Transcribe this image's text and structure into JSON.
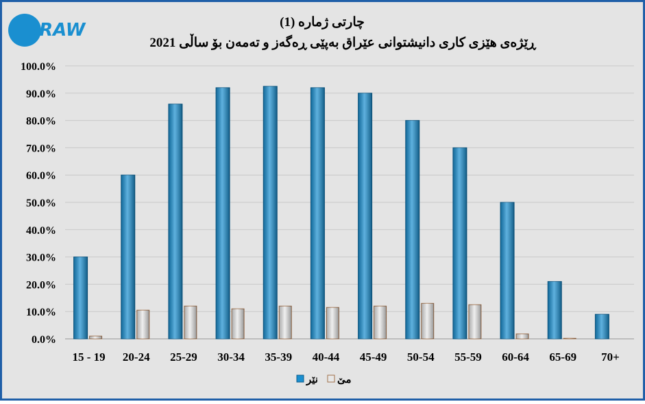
{
  "logo": "DRAW",
  "chart_data": {
    "type": "bar",
    "title": "چارتی ژمارە (1)",
    "subtitle": "ڕێژەی هێزی کاری دانیشتوانی عێراق بەپێی ڕەگەز و تەمەن بۆ ساڵی 2021",
    "categories": [
      "15 - 19",
      "20-24",
      "25-29",
      "30-34",
      "35-39",
      "40-44",
      "45-49",
      "50-54",
      "55-59",
      "60-64",
      "65-69",
      "70+"
    ],
    "series": [
      {
        "name": "نێر",
        "color": "#1a8fd0",
        "values": [
          30,
          60,
          86,
          92,
          92.5,
          92,
          90,
          80,
          70,
          50,
          21,
          9
        ]
      },
      {
        "name": "مێ",
        "color": "#e8e8e8",
        "values": [
          1,
          10.5,
          12,
          11,
          12,
          11.5,
          12,
          13,
          12.5,
          1.8,
          0.2,
          0
        ]
      }
    ],
    "ylim": [
      0,
      100
    ],
    "yticks": [
      {
        "value": 0,
        "label": "0.0%"
      },
      {
        "value": 10,
        "label": "10.0%"
      },
      {
        "value": 20,
        "label": "20.0%"
      },
      {
        "value": 30,
        "label": "30.0%"
      },
      {
        "value": 40,
        "label": "40.0%"
      },
      {
        "value": 50,
        "label": "50.0%"
      },
      {
        "value": 60,
        "label": "60.0%"
      },
      {
        "value": 70,
        "label": "70.0%"
      },
      {
        "value": 80,
        "label": "80.0%"
      },
      {
        "value": 90,
        "label": "90.0%"
      },
      {
        "value": 100,
        "label": "100.0%"
      }
    ],
    "grid": true,
    "legend": "bottom"
  }
}
